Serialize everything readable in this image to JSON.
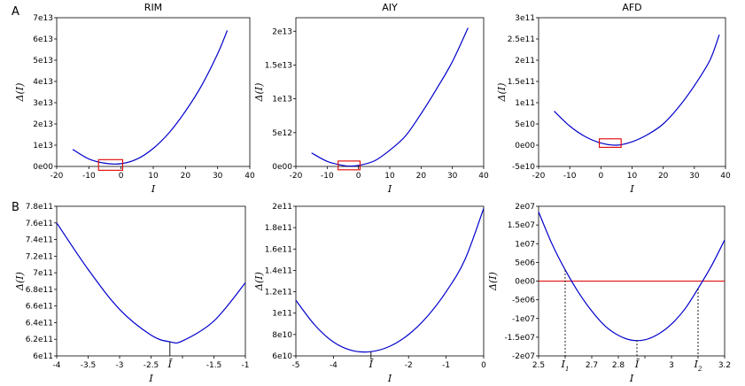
{
  "figure": {
    "label_a": "A",
    "label_b": "B"
  },
  "chart_data": [
    {
      "type": "line",
      "title": "RIM",
      "xlabel": "I",
      "ylabel": "Δ(I)",
      "xlim": [
        -20,
        40
      ],
      "ylim": [
        0,
        70000000000000.0
      ],
      "xticks": [
        -20,
        -10,
        0,
        10,
        20,
        30,
        40
      ],
      "xtick_labels": [
        "-20",
        "-10",
        "0",
        "10",
        "20",
        "30",
        "40"
      ],
      "yticks": [
        0,
        10000000000000.0,
        20000000000000.0,
        30000000000000.0,
        40000000000000.0,
        50000000000000.0,
        60000000000000.0,
        70000000000000.0
      ],
      "ytick_labels": [
        "0e00",
        "1e13",
        "2e13",
        "3e13",
        "4e13",
        "5e13",
        "6e13",
        "7e13"
      ],
      "series": [
        {
          "color": "#0000cc",
          "x": [
            -15,
            -10,
            -5,
            0,
            5,
            10,
            15,
            20,
            25,
            30,
            33
          ],
          "y": [
            8000000000000.0,
            3500000000000.0,
            1500000000000.0,
            1300000000000.0,
            3500000000000.0,
            8500000000000.0,
            16000000000000.0,
            26000000000000.0,
            38000000000000.0,
            53000000000000.0,
            64000000000000.0
          ]
        }
      ],
      "highlight_box": {
        "color": "#e00000",
        "x": [
          -7,
          0.5
        ],
        "y": [
          -1800000000000.0,
          3200000000000.0
        ]
      }
    },
    {
      "type": "line",
      "title": "AIY",
      "xlabel": "I",
      "ylabel": "Δ(I)",
      "xlim": [
        -20,
        40
      ],
      "ylim": [
        0,
        22000000000000.0
      ],
      "xticks": [
        -20,
        -10,
        0,
        10,
        20,
        30,
        40
      ],
      "xtick_labels": [
        "-20",
        "-10",
        "0",
        "10",
        "20",
        "30",
        "40"
      ],
      "yticks": [
        0,
        5000000000000.0,
        10000000000000.0,
        15000000000000.0,
        20000000000000.0
      ],
      "ytick_labels": [
        "0e00",
        "5e12",
        "1e13",
        "1.5e13",
        "2e13"
      ],
      "series": [
        {
          "color": "#0000cc",
          "x": [
            -15,
            -10,
            -5,
            -3,
            0,
            5,
            10,
            15,
            20,
            25,
            30,
            35
          ],
          "y": [
            2000000000000.0,
            750000000000.0,
            150000000000.0,
            60000000000.0,
            150000000000.0,
            800000000000.0,
            2400000000000.0,
            4500000000000.0,
            7800000000000.0,
            11500000000000.0,
            15500000000000.0,
            20500000000000.0
          ]
        }
      ],
      "highlight_box": {
        "color": "#e00000",
        "x": [
          -6.5,
          0.5
        ],
        "y": [
          -500000000000.0,
          800000000000.0
        ]
      }
    },
    {
      "type": "line",
      "title": "AFD",
      "xlabel": "I",
      "ylabel": "Δ(I)",
      "xlim": [
        -20,
        40
      ],
      "ylim": [
        -50000000000.0,
        300000000000.0
      ],
      "xticks": [
        -20,
        -10,
        0,
        10,
        20,
        30,
        40
      ],
      "xtick_labels": [
        "-20",
        "-10",
        "0",
        "10",
        "20",
        "30",
        "40"
      ],
      "yticks": [
        -50000000000.0,
        0,
        50000000000.0,
        100000000000.0,
        150000000000.0,
        200000000000.0,
        250000000000.0,
        300000000000.0
      ],
      "ytick_labels": [
        "-5e10",
        "0e00",
        "5e10",
        "1e11",
        "1.5e11",
        "2e11",
        "2.5e11",
        "3e11"
      ],
      "series": [
        {
          "color": "#0000cc",
          "x": [
            -15,
            -10,
            -5,
            0,
            5,
            10,
            15,
            20,
            25,
            30,
            35,
            38
          ],
          "y": [
            80000000000.0,
            45000000000.0,
            20000000000.0,
            5000000000.0,
            0,
            8000000000.0,
            25000000000.0,
            50000000000.0,
            90000000000.0,
            140000000000.0,
            200000000000.0,
            260000000000.0
          ]
        }
      ],
      "highlight_box": {
        "color": "#e00000",
        "x": [
          -0.5,
          6.5
        ],
        "y": [
          -5000000000.0,
          15000000000.0
        ]
      }
    },
    {
      "type": "line",
      "xlabel": "I",
      "ylabel": "Δ(I)",
      "xlim": [
        -4,
        -1
      ],
      "ylim": [
        600000000000.0,
        780000000000.0
      ],
      "xticks": [
        -4,
        -3.5,
        -3,
        -2.5,
        -2,
        -1.5,
        -1
      ],
      "xtick_labels": [
        "-4",
        "-3.5",
        "-3",
        "-2.5",
        "",
        "-1.5",
        "-1"
      ],
      "yticks": [
        600000000000.0,
        620000000000.0,
        640000000000.0,
        660000000000.0,
        680000000000.0,
        700000000000.0,
        720000000000.0,
        740000000000.0,
        760000000000.0,
        780000000000.0
      ],
      "ytick_labels": [
        "6e11",
        "6.2e11",
        "6.4e11",
        "6.6e11",
        "6.8e11",
        "7e11",
        "7.2e11",
        "7.4e11",
        "7.6e11",
        "7.8e11"
      ],
      "series": [
        {
          "color": "#0000cc",
          "x": [
            -4,
            -3.5,
            -3,
            -2.5,
            -2.2,
            -2,
            -1.5,
            -1
          ],
          "y": [
            760000000000.0,
            704000000000.0,
            656000000000.0,
            625000000000.0,
            617000000000.0,
            618000000000.0,
            642000000000.0,
            688000000000.0
          ]
        }
      ],
      "minimum_marker": {
        "x": -2.2,
        "y": 617000000000.0,
        "label": "Ī"
      }
    },
    {
      "type": "line",
      "xlabel": "I",
      "ylabel": "Δ(I)",
      "xlim": [
        -5,
        0
      ],
      "ylim": [
        60000000000.0,
        200000000000.0
      ],
      "xticks": [
        -5,
        -4,
        -3,
        -2,
        -1,
        0
      ],
      "xtick_labels": [
        "-5",
        "-4",
        "",
        "-2",
        "-1",
        "0"
      ],
      "yticks": [
        60000000000.0,
        80000000000.0,
        100000000000.0,
        120000000000.0,
        140000000000.0,
        160000000000.0,
        180000000000.0,
        200000000000.0
      ],
      "ytick_labels": [
        "6e10",
        "8e10",
        "1e11",
        "1.2e11",
        "1.4e11",
        "1.6e11",
        "1.8e11",
        "2e11"
      ],
      "series": [
        {
          "color": "#0000cc",
          "x": [
            -5,
            -4.5,
            -4,
            -3.5,
            -3,
            -2.5,
            -2,
            -1.5,
            -1,
            -0.5,
            0
          ],
          "y": [
            112000000000.0,
            89000000000.0,
            73000000000.0,
            65000000000.0,
            64000000000.0,
            69000000000.0,
            80000000000.0,
            97000000000.0,
            120000000000.0,
            150000000000.0,
            198000000000.0
          ]
        }
      ],
      "minimum_marker": {
        "x": -3,
        "y": 64000000000.0,
        "label": "Ī"
      }
    },
    {
      "type": "line",
      "xlabel": "I",
      "ylabel": "Δ(I)",
      "xlim": [
        2.5,
        3.2
      ],
      "ylim": [
        -20000000.0,
        20000000.0
      ],
      "xticks": [
        2.5,
        2.6,
        2.7,
        2.8,
        2.9,
        3,
        3.1,
        3.2
      ],
      "xtick_labels": [
        "2.5",
        "",
        "2.7",
        "2.8",
        "",
        "3",
        "",
        "3.2"
      ],
      "yticks": [
        -20000000.0,
        -15000000.0,
        -10000000.0,
        -5000000.0,
        0,
        5000000.0,
        10000000.0,
        15000000.0,
        20000000.0
      ],
      "ytick_labels": [
        "-2e07",
        "-1.5e07",
        "-1e07",
        "-5e06",
        "0e00",
        "5e06",
        "1e07",
        "1.5e07",
        "2e07"
      ],
      "series": [
        {
          "color": "#0000cc",
          "x": [
            2.5,
            2.55,
            2.6,
            2.65,
            2.7,
            2.75,
            2.8,
            2.85,
            2.9,
            2.95,
            3,
            3.05,
            3.1,
            3.15,
            3.2
          ],
          "y": [
            18500000.0,
            10000000.0,
            3000000.0,
            -3000000.0,
            -8000000.0,
            -12000000.0,
            -14500000.0,
            -15800000.0,
            -15700000.0,
            -14200000.0,
            -11500000.0,
            -7500000.0,
            -2000000.0,
            4000000.0,
            11000000.0
          ]
        }
      ],
      "zero_line": {
        "y": 0,
        "color": "#e00000"
      },
      "root_markers": [
        {
          "x": 2.6,
          "label": "I",
          "sub": "1"
        },
        {
          "x": 2.87,
          "label": "Ī",
          "sub": ""
        },
        {
          "x": 3.1,
          "label": "I",
          "sub": "2"
        }
      ]
    }
  ]
}
